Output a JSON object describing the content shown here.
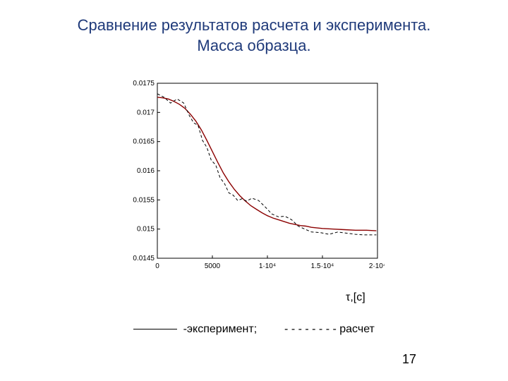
{
  "title_line1": "Сравнение результатов расчета и эксперимента.",
  "title_line2": "Масса образца.",
  "x_axis_label": "τ,[с]",
  "legend_solid_label": "-эксперимент;",
  "legend_dash_label": "- - - - - - - - расчет",
  "page_number": "17",
  "chart": {
    "type": "line",
    "background_color": "#ffffff",
    "axis_color": "#000000",
    "tick_font_size": 10,
    "xlim": [
      0,
      20000
    ],
    "ylim": [
      0.0145,
      0.0175
    ],
    "xticks": [
      {
        "v": 0,
        "label": "0"
      },
      {
        "v": 5000,
        "label": "5000"
      },
      {
        "v": 10000,
        "label": "1·10⁴"
      },
      {
        "v": 15000,
        "label": "1.5·10⁴"
      },
      {
        "v": 20000,
        "label": "2·10⁴"
      }
    ],
    "yticks": [
      {
        "v": 0.0145,
        "label": "0.0145"
      },
      {
        "v": 0.015,
        "label": "0.015"
      },
      {
        "v": 0.0155,
        "label": "0.0155"
      },
      {
        "v": 0.016,
        "label": "0.016"
      },
      {
        "v": 0.0165,
        "label": "0.0165"
      },
      {
        "v": 0.017,
        "label": "0.017"
      },
      {
        "v": 0.0175,
        "label": "0.0175"
      }
    ],
    "series": [
      {
        "name": "experiment",
        "color": "#8b0000",
        "width": 1.4,
        "dash": "none",
        "points": [
          [
            0,
            0.01726
          ],
          [
            500,
            0.01725
          ],
          [
            1000,
            0.01723
          ],
          [
            1500,
            0.01719
          ],
          [
            2000,
            0.01714
          ],
          [
            2500,
            0.01707
          ],
          [
            3000,
            0.01697
          ],
          [
            3500,
            0.01685
          ],
          [
            4000,
            0.0167
          ],
          [
            4500,
            0.01652
          ],
          [
            5000,
            0.01633
          ],
          [
            5500,
            0.01614
          ],
          [
            6000,
            0.01596
          ],
          [
            6500,
            0.01581
          ],
          [
            7000,
            0.01568
          ],
          [
            7500,
            0.01557
          ],
          [
            8000,
            0.01548
          ],
          [
            8500,
            0.0154
          ],
          [
            9000,
            0.01534
          ],
          [
            9500,
            0.01528
          ],
          [
            10000,
            0.01523
          ],
          [
            10500,
            0.01519
          ],
          [
            11000,
            0.01516
          ],
          [
            11500,
            0.01513
          ],
          [
            12000,
            0.0151
          ],
          [
            12500,
            0.01508
          ],
          [
            13000,
            0.01506
          ],
          [
            13500,
            0.01505
          ],
          [
            14000,
            0.01503
          ],
          [
            15000,
            0.01501
          ],
          [
            16000,
            0.015
          ],
          [
            17000,
            0.01499
          ],
          [
            18000,
            0.01498
          ],
          [
            19000,
            0.01498
          ],
          [
            19900,
            0.01497
          ]
        ]
      },
      {
        "name": "calculation",
        "color": "#000000",
        "width": 1.0,
        "dash": "4,3",
        "points": [
          [
            0,
            0.01732
          ],
          [
            600,
            0.01726
          ],
          [
            1200,
            0.01716
          ],
          [
            1800,
            0.01723
          ],
          [
            2400,
            0.01716
          ],
          [
            2900,
            0.01695
          ],
          [
            3300,
            0.01682
          ],
          [
            3700,
            0.01678
          ],
          [
            4100,
            0.01652
          ],
          [
            4500,
            0.0164
          ],
          [
            4900,
            0.01618
          ],
          [
            5300,
            0.0161
          ],
          [
            5700,
            0.01588
          ],
          [
            6100,
            0.01578
          ],
          [
            6500,
            0.01562
          ],
          [
            6900,
            0.01558
          ],
          [
            7300,
            0.01549
          ],
          [
            7700,
            0.01552
          ],
          [
            8100,
            0.01548
          ],
          [
            8600,
            0.01553
          ],
          [
            9200,
            0.01549
          ],
          [
            9800,
            0.01538
          ],
          [
            10400,
            0.01526
          ],
          [
            11000,
            0.01521
          ],
          [
            11600,
            0.01522
          ],
          [
            12200,
            0.01516
          ],
          [
            12800,
            0.01505
          ],
          [
            13400,
            0.015
          ],
          [
            14000,
            0.01495
          ],
          [
            14800,
            0.01494
          ],
          [
            15600,
            0.01491
          ],
          [
            16400,
            0.01495
          ],
          [
            17200,
            0.01493
          ],
          [
            18000,
            0.01491
          ],
          [
            18800,
            0.0149
          ],
          [
            19600,
            0.0149
          ],
          [
            19900,
            0.0149
          ]
        ]
      }
    ]
  },
  "legend_line_width": 62
}
